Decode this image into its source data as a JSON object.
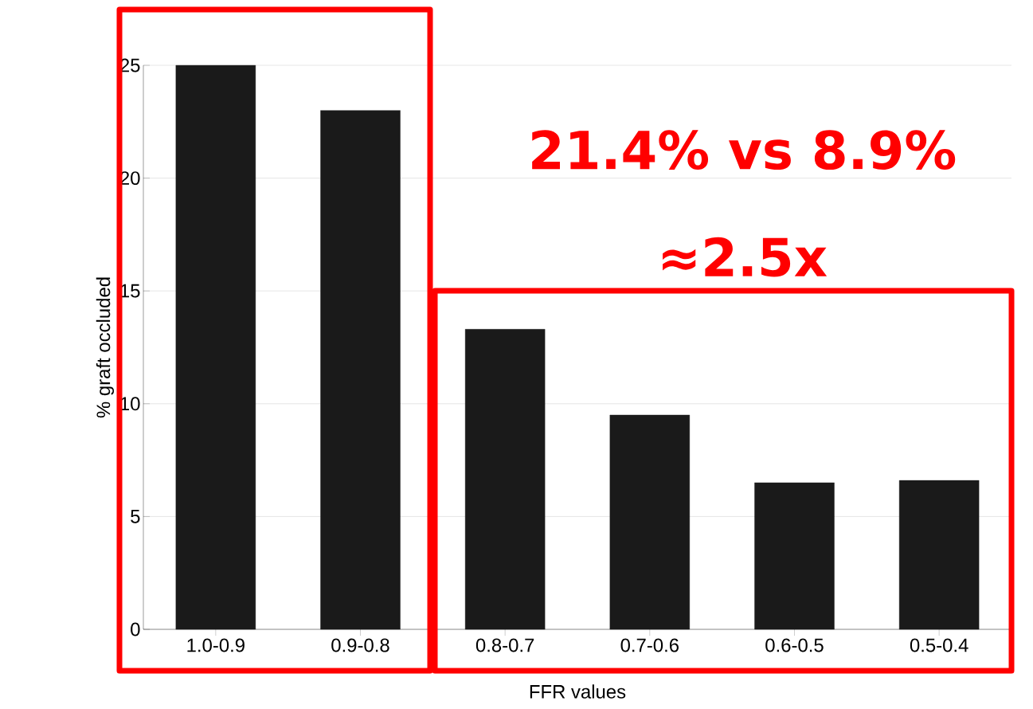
{
  "chart_data": {
    "type": "bar",
    "xlabel": "FFR values",
    "ylabel": "% graft occluded",
    "categories": [
      "1.0-0.9",
      "0.9-0.8",
      "0.8-0.7",
      "0.7-0.6",
      "0.6-0.5",
      "0.5-0.4"
    ],
    "values": [
      25,
      23,
      13.3,
      9.5,
      6.5,
      6.6
    ],
    "color": "#1a1a1a",
    "ylim": [
      0,
      25
    ],
    "yticks": [
      0,
      5,
      10,
      15,
      20,
      25
    ],
    "grid": "y",
    "annotations": [
      "21.4% vs 8.9%",
      "≈2.5x"
    ]
  }
}
